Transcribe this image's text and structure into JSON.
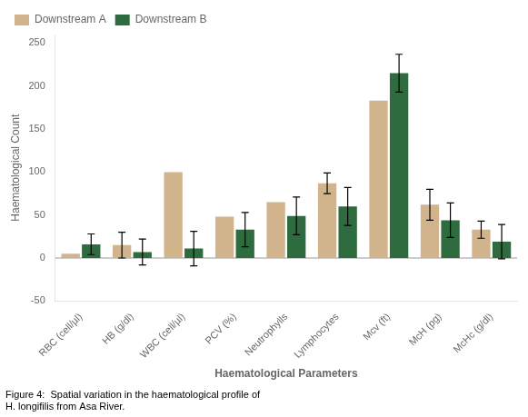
{
  "chart_data": {
    "type": "bar",
    "categories": [
      "RBC (cell/µl)",
      "HB (g/dl)",
      "WBC (cell/µl)",
      "PCV (%)",
      "Neutrophylls",
      "Lymphocytes",
      "Mcv (ft)",
      "McH (pg)",
      "McHc (g/dl)"
    ],
    "series": [
      {
        "name": "Downstream A",
        "color": "#D2B48C",
        "values": [
          5,
          15,
          100,
          48,
          65,
          87,
          183,
          62,
          33
        ],
        "errors": [
          0,
          15,
          0,
          0,
          0,
          12,
          0,
          18,
          10
        ]
      },
      {
        "name": "Downstream B",
        "color": "#2E6B3E",
        "values": [
          16,
          7,
          11,
          33,
          49,
          60,
          215,
          44,
          19
        ],
        "errors": [
          12,
          15,
          20,
          20,
          22,
          22,
          22,
          20,
          20
        ]
      }
    ],
    "xlabel": "Haematological Parameters",
    "ylabel": "Haematological Count",
    "caption": "Figure 4:  Spatial variation in the haematological profile of\nH. longifilis from Asa River.",
    "ylim": [
      -50,
      260
    ],
    "yticks": [
      -50,
      0,
      50,
      100,
      150,
      200,
      250
    ],
    "hline": 0,
    "grid": false,
    "legend": "upper left"
  }
}
